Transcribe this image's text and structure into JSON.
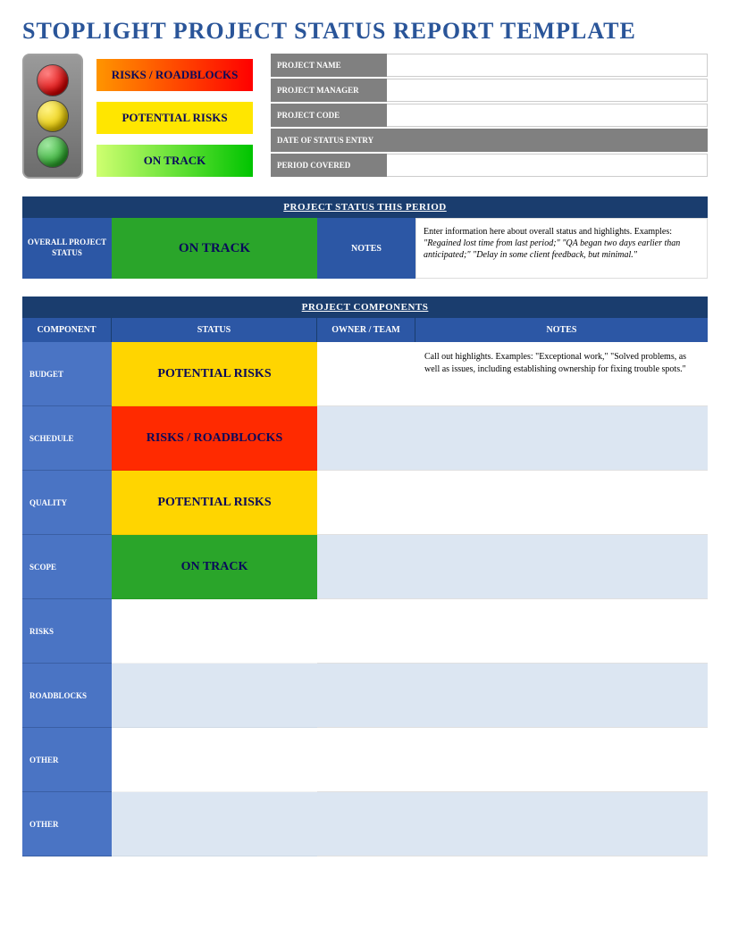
{
  "page_title": "STOPLIGHT PROJECT STATUS REPORT TEMPLATE",
  "colors": {
    "title": "#2a5599",
    "header_dark": "#1a3d6e",
    "header_mid": "#2c57a5",
    "comp_label": "#4a74c4",
    "alt_row": "#dce6f2",
    "red_grad_start": "#ff9500",
    "red_grad_end": "#ff0000",
    "yellow": "#ffe600",
    "green_grad_start": "#cfff70",
    "green_grad_end": "#00c400",
    "status_yellow": "#ffd500",
    "status_red": "#ff2a00",
    "status_green": "#2aa52a",
    "info_label_bg": "#808080"
  },
  "legend": {
    "red": "RISKS / ROADBLOCKS",
    "yellow": "POTENTIAL RISKS",
    "green": "ON TRACK"
  },
  "info_fields": {
    "project_name": "PROJECT NAME",
    "project_manager": "PROJECT MANAGER",
    "project_code": "PROJECT CODE",
    "date_of_status_entry": "DATE OF STATUS ENTRY",
    "period_covered": "PERIOD COVERED"
  },
  "status_section": {
    "header": "PROJECT STATUS THIS PERIOD",
    "overall_label": "OVERALL PROJECT STATUS",
    "overall_value": "ON TRACK",
    "notes_label": "NOTES",
    "notes_intro": "Enter information here about overall status and highlights. Examples:",
    "notes_italic": "\"Regained lost time from last period;\" \"QA began two days earlier than anticipated;\" \"Delay in some client feedback, but minimal.\""
  },
  "components_section": {
    "header": "PROJECT COMPONENTS",
    "columns": {
      "component": "COMPONENT",
      "status": "STATUS",
      "owner": "OWNER / TEAM",
      "notes": "NOTES"
    },
    "rows": [
      {
        "label": "BUDGET",
        "status": "POTENTIAL RISKS",
        "status_class": "bg-yellow",
        "alt": false,
        "notes": "Call out highlights. Examples: \"Exceptional work,\" \"Solved problems, as well as issues, including establishing ownership for fixing trouble spots.\""
      },
      {
        "label": "SCHEDULE",
        "status": "RISKS / ROADBLOCKS",
        "status_class": "bg-red",
        "alt": true,
        "notes": ""
      },
      {
        "label": "QUALITY",
        "status": "POTENTIAL RISKS",
        "status_class": "bg-yellow",
        "alt": false,
        "notes": ""
      },
      {
        "label": "SCOPE",
        "status": "ON TRACK",
        "status_class": "bg-green",
        "alt": true,
        "notes": ""
      },
      {
        "label": "RISKS",
        "status": "",
        "status_class": "bg-plain-white",
        "alt": false,
        "notes": ""
      },
      {
        "label": "ROADBLOCKS",
        "status": "",
        "status_class": "bg-plain-blue",
        "alt": true,
        "notes": ""
      },
      {
        "label": "OTHER",
        "status": "",
        "status_class": "bg-plain-white",
        "alt": false,
        "notes": ""
      },
      {
        "label": "OTHER",
        "status": "",
        "status_class": "bg-plain-blue",
        "alt": true,
        "notes": ""
      }
    ]
  }
}
